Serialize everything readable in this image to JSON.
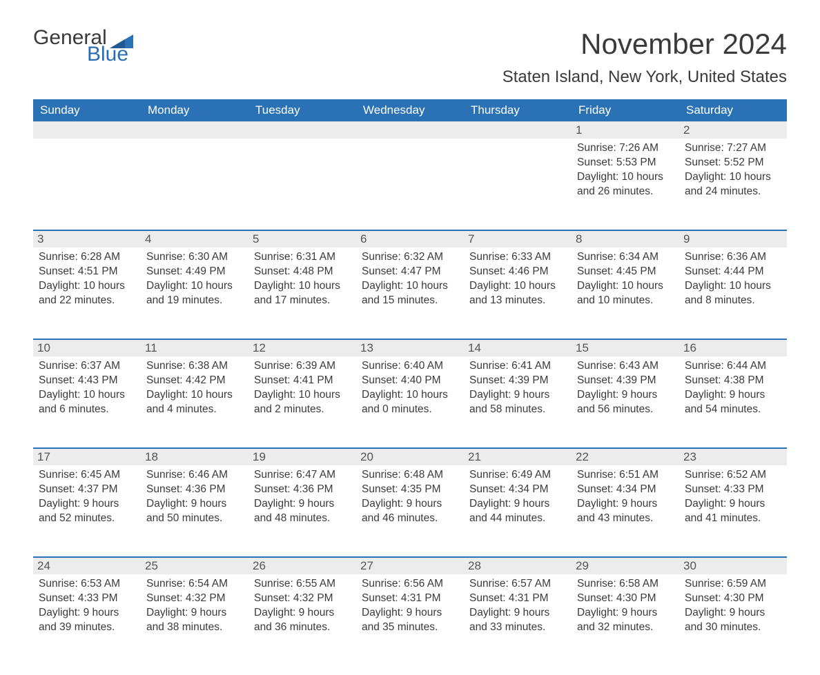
{
  "logo": {
    "text_general": "General",
    "text_blue": "Blue",
    "flag_color": "#2a72b5"
  },
  "title": "November 2024",
  "location": "Staten Island, New York, United States",
  "colors": {
    "header_bg": "#2a72b5",
    "header_text": "#ffffff",
    "daynum_bg": "#ececec",
    "text": "#3a3a3a",
    "week_separator": "#2a72b5",
    "background": "#ffffff"
  },
  "layout": {
    "columns": 7,
    "rows": 5,
    "first_day_column_index": 5
  },
  "weekdays": [
    "Sunday",
    "Monday",
    "Tuesday",
    "Wednesday",
    "Thursday",
    "Friday",
    "Saturday"
  ],
  "days": [
    {
      "n": 1,
      "sunrise": "7:26 AM",
      "sunset": "5:53 PM",
      "daylight": "10 hours and 26 minutes."
    },
    {
      "n": 2,
      "sunrise": "7:27 AM",
      "sunset": "5:52 PM",
      "daylight": "10 hours and 24 minutes."
    },
    {
      "n": 3,
      "sunrise": "6:28 AM",
      "sunset": "4:51 PM",
      "daylight": "10 hours and 22 minutes."
    },
    {
      "n": 4,
      "sunrise": "6:30 AM",
      "sunset": "4:49 PM",
      "daylight": "10 hours and 19 minutes."
    },
    {
      "n": 5,
      "sunrise": "6:31 AM",
      "sunset": "4:48 PM",
      "daylight": "10 hours and 17 minutes."
    },
    {
      "n": 6,
      "sunrise": "6:32 AM",
      "sunset": "4:47 PM",
      "daylight": "10 hours and 15 minutes."
    },
    {
      "n": 7,
      "sunrise": "6:33 AM",
      "sunset": "4:46 PM",
      "daylight": "10 hours and 13 minutes."
    },
    {
      "n": 8,
      "sunrise": "6:34 AM",
      "sunset": "4:45 PM",
      "daylight": "10 hours and 10 minutes."
    },
    {
      "n": 9,
      "sunrise": "6:36 AM",
      "sunset": "4:44 PM",
      "daylight": "10 hours and 8 minutes."
    },
    {
      "n": 10,
      "sunrise": "6:37 AM",
      "sunset": "4:43 PM",
      "daylight": "10 hours and 6 minutes."
    },
    {
      "n": 11,
      "sunrise": "6:38 AM",
      "sunset": "4:42 PM",
      "daylight": "10 hours and 4 minutes."
    },
    {
      "n": 12,
      "sunrise": "6:39 AM",
      "sunset": "4:41 PM",
      "daylight": "10 hours and 2 minutes."
    },
    {
      "n": 13,
      "sunrise": "6:40 AM",
      "sunset": "4:40 PM",
      "daylight": "10 hours and 0 minutes."
    },
    {
      "n": 14,
      "sunrise": "6:41 AM",
      "sunset": "4:39 PM",
      "daylight": "9 hours and 58 minutes."
    },
    {
      "n": 15,
      "sunrise": "6:43 AM",
      "sunset": "4:39 PM",
      "daylight": "9 hours and 56 minutes."
    },
    {
      "n": 16,
      "sunrise": "6:44 AM",
      "sunset": "4:38 PM",
      "daylight": "9 hours and 54 minutes."
    },
    {
      "n": 17,
      "sunrise": "6:45 AM",
      "sunset": "4:37 PM",
      "daylight": "9 hours and 52 minutes."
    },
    {
      "n": 18,
      "sunrise": "6:46 AM",
      "sunset": "4:36 PM",
      "daylight": "9 hours and 50 minutes."
    },
    {
      "n": 19,
      "sunrise": "6:47 AM",
      "sunset": "4:36 PM",
      "daylight": "9 hours and 48 minutes."
    },
    {
      "n": 20,
      "sunrise": "6:48 AM",
      "sunset": "4:35 PM",
      "daylight": "9 hours and 46 minutes."
    },
    {
      "n": 21,
      "sunrise": "6:49 AM",
      "sunset": "4:34 PM",
      "daylight": "9 hours and 44 minutes."
    },
    {
      "n": 22,
      "sunrise": "6:51 AM",
      "sunset": "4:34 PM",
      "daylight": "9 hours and 43 minutes."
    },
    {
      "n": 23,
      "sunrise": "6:52 AM",
      "sunset": "4:33 PM",
      "daylight": "9 hours and 41 minutes."
    },
    {
      "n": 24,
      "sunrise": "6:53 AM",
      "sunset": "4:33 PM",
      "daylight": "9 hours and 39 minutes."
    },
    {
      "n": 25,
      "sunrise": "6:54 AM",
      "sunset": "4:32 PM",
      "daylight": "9 hours and 38 minutes."
    },
    {
      "n": 26,
      "sunrise": "6:55 AM",
      "sunset": "4:32 PM",
      "daylight": "9 hours and 36 minutes."
    },
    {
      "n": 27,
      "sunrise": "6:56 AM",
      "sunset": "4:31 PM",
      "daylight": "9 hours and 35 minutes."
    },
    {
      "n": 28,
      "sunrise": "6:57 AM",
      "sunset": "4:31 PM",
      "daylight": "9 hours and 33 minutes."
    },
    {
      "n": 29,
      "sunrise": "6:58 AM",
      "sunset": "4:30 PM",
      "daylight": "9 hours and 32 minutes."
    },
    {
      "n": 30,
      "sunrise": "6:59 AM",
      "sunset": "4:30 PM",
      "daylight": "9 hours and 30 minutes."
    }
  ],
  "labels": {
    "sunrise": "Sunrise:",
    "sunset": "Sunset:",
    "daylight": "Daylight:"
  }
}
